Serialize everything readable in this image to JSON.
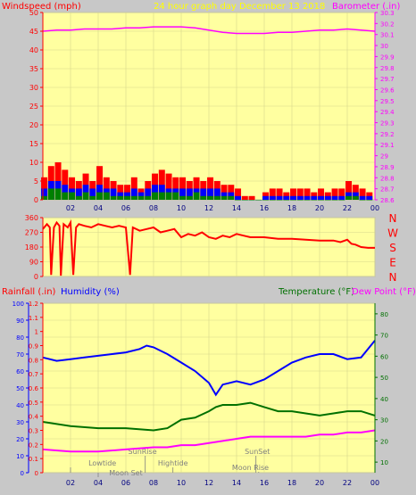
{
  "header": {
    "wind_label": "Windspeed (mph)",
    "title": "24 hour graph day   December 13 2018",
    "baro_label": "Barometer (.in)"
  },
  "colors": {
    "background": "#c8c8c8",
    "plot_bg": "#ffffa0",
    "grid": "#d7d78c",
    "axis_red": "#ff0000",
    "magenta": "#ff00ff",
    "wind_red": "#ff0000",
    "wind_blue": "#0000ff",
    "wind_green": "#008000",
    "humidity": "#0000ff",
    "temperature": "#007000",
    "dew": "#ff00ff",
    "annotation": "#808080"
  },
  "chart_data": [
    {
      "type": "line",
      "name": "wind-baro",
      "x_ticks": [
        "02",
        "04",
        "06",
        "08",
        "10",
        "12",
        "14",
        "16",
        "18",
        "20",
        "22",
        "00"
      ],
      "y_left_ticks": [
        "0",
        "5",
        "10",
        "15",
        "20",
        "25",
        "30",
        "35",
        "40",
        "45",
        "50"
      ],
      "y_left_range": [
        0,
        50
      ],
      "y_right_ticks": [
        "28.6",
        "28.7",
        "28.8",
        "28.9",
        "29",
        "29.1",
        "29.2",
        "29.3",
        "29.4",
        "29.5",
        "29.6",
        "29.7",
        "29.8",
        "29.9",
        "30",
        "30.1",
        "30.2",
        "30.3"
      ],
      "y_right_range": [
        28.6,
        30.3
      ],
      "x_range": [
        0,
        24
      ],
      "series": [
        {
          "name": "Windspeed (mph)",
          "axis": "left",
          "style": "red-bars",
          "x": [
            0.1,
            0.6,
            1.1,
            1.6,
            2.1,
            2.6,
            3.1,
            3.6,
            4.1,
            4.6,
            5.1,
            5.6,
            6.1,
            6.6,
            7.1,
            7.6,
            8.1,
            8.6,
            9.1,
            9.6,
            10.1,
            10.6,
            11.1,
            11.6,
            12.1,
            12.6,
            13.1,
            13.6,
            14.1,
            14.6,
            15.1,
            15.6,
            16.1,
            16.6,
            17.1,
            17.6,
            18.1,
            18.6,
            19.1,
            19.6,
            20.1,
            20.6,
            21.1,
            21.6,
            22.1,
            22.6,
            23.1,
            23.6
          ],
          "gust": [
            6,
            9,
            10,
            8,
            6,
            5,
            7,
            5,
            9,
            6,
            5,
            4,
            4,
            6,
            3,
            5,
            7,
            8,
            7,
            6,
            6,
            5,
            6,
            5,
            6,
            5,
            4,
            4,
            3,
            1,
            1,
            0,
            2,
            3,
            3,
            2,
            3,
            3,
            3,
            2,
            3,
            2,
            3,
            3,
            5,
            4,
            3,
            2
          ],
          "avg": [
            3,
            5,
            5,
            4,
            3,
            3,
            4,
            3,
            4,
            3,
            3,
            2,
            2,
            3,
            2,
            3,
            4,
            4,
            3,
            3,
            3,
            3,
            3,
            3,
            3,
            3,
            2,
            2,
            1,
            0,
            0,
            0,
            1,
            1,
            1,
            1,
            1,
            1,
            1,
            1,
            1,
            1,
            1,
            1,
            2,
            2,
            1,
            1
          ],
          "low": [
            1,
            3,
            3,
            2,
            2,
            1,
            2,
            1,
            2,
            2,
            1,
            1,
            1,
            1,
            1,
            1,
            2,
            2,
            2,
            2,
            1,
            1,
            2,
            1,
            1,
            1,
            1,
            1,
            0,
            0,
            0,
            0,
            0,
            0,
            0,
            0,
            0,
            0,
            0,
            0,
            0,
            0,
            0,
            0,
            1,
            1,
            0,
            0
          ]
        },
        {
          "name": "Barometer (.in)",
          "axis": "right",
          "x": [
            0,
            1,
            2,
            3,
            4,
            5,
            6,
            7,
            8,
            9,
            10,
            11,
            12,
            13,
            14,
            15,
            16,
            17,
            18,
            19,
            20,
            21,
            22,
            23,
            24
          ],
          "y": [
            30.13,
            30.14,
            30.14,
            30.15,
            30.15,
            30.15,
            30.16,
            30.16,
            30.17,
            30.17,
            30.17,
            30.16,
            30.14,
            30.12,
            30.11,
            30.11,
            30.11,
            30.12,
            30.12,
            30.13,
            30.14,
            30.14,
            30.15,
            30.14,
            30.13
          ]
        }
      ]
    },
    {
      "type": "line",
      "name": "wind-direction",
      "y_ticks": [
        "360",
        "270",
        "180",
        "90",
        "0"
      ],
      "y_range": [
        0,
        360
      ],
      "compass": [
        "N",
        "W",
        "S",
        "E",
        "N"
      ],
      "x_range": [
        0,
        24
      ],
      "series": [
        {
          "name": "Wind direction",
          "x": [
            0,
            0.3,
            0.5,
            0.6,
            0.8,
            1.0,
            1.2,
            1.3,
            1.5,
            1.8,
            2.0,
            2.2,
            2.4,
            2.6,
            3.0,
            3.5,
            4.0,
            4.5,
            5.0,
            5.5,
            6.0,
            6.3,
            6.5,
            7.0,
            7.5,
            8.0,
            8.5,
            9.0,
            9.5,
            10.0,
            10.5,
            11.0,
            11.5,
            12.0,
            12.5,
            13.0,
            13.5,
            14.0,
            14.5,
            15.0,
            16.0,
            17.0,
            18.0,
            19.0,
            20.0,
            21.0,
            21.5,
            22.0,
            22.3,
            22.6,
            23.0,
            23.5,
            24.0
          ],
          "y": [
            290,
            320,
            300,
            10,
            300,
            330,
            310,
            5,
            320,
            300,
            330,
            10,
            300,
            320,
            310,
            300,
            320,
            310,
            300,
            310,
            300,
            10,
            300,
            280,
            290,
            300,
            270,
            280,
            290,
            240,
            260,
            250,
            270,
            240,
            230,
            250,
            240,
            260,
            250,
            240,
            240,
            230,
            230,
            225,
            220,
            220,
            210,
            225,
            200,
            195,
            180,
            175,
            175
          ]
        }
      ]
    },
    {
      "type": "line",
      "name": "rain-humidity-temperature",
      "x_ticks": [
        "02",
        "04",
        "06",
        "08",
        "10",
        "12",
        "14",
        "16",
        "18",
        "20",
        "22",
        "00"
      ],
      "y_humidity_ticks": [
        "0",
        "10",
        "20",
        "30",
        "40",
        "50",
        "60",
        "70",
        "80",
        "90",
        "100"
      ],
      "y_rain_ticks": [
        "0",
        "0.1",
        "0.2",
        "0.3",
        "0.4",
        "0.5",
        "0.6",
        "0.7",
        "0.8",
        "0.9",
        "1",
        "1.1",
        "1.2"
      ],
      "y_right_ticks": [
        "10",
        "20",
        "30",
        "40",
        "50",
        "60",
        "70",
        "80"
      ],
      "y_humidity_range": [
        0,
        100
      ],
      "y_rain_range": [
        0,
        1.2
      ],
      "y_right_range": [
        5,
        85
      ],
      "x_range": [
        0,
        24
      ],
      "labels": {
        "rainfall": "Rainfall (.in)",
        "humidity": "Humidity (%)",
        "temperature": "Temperature (°F)",
        "dewpoint": "Dew Point (°F)"
      },
      "annotations": [
        "Lowtide",
        "Moon Set",
        "SunRise",
        "Hightide",
        "SunSet",
        "Moon Rise"
      ],
      "series": [
        {
          "name": "Humidity (%)",
          "axis": "humidity",
          "x": [
            0,
            1,
            2,
            3,
            4,
            5,
            6,
            7,
            7.5,
            8,
            9,
            10,
            11,
            12,
            12.5,
            13,
            14,
            15,
            16,
            17,
            18,
            19,
            20,
            21,
            22,
            23,
            24
          ],
          "y": [
            68,
            66,
            67,
            68,
            69,
            70,
            71,
            73,
            75,
            74,
            70,
            65,
            60,
            53,
            46,
            52,
            54,
            52,
            55,
            60,
            65,
            68,
            70,
            70,
            67,
            68,
            78
          ]
        },
        {
          "name": "Temperature (°F)",
          "axis": "right",
          "x": [
            0,
            2,
            4,
            6,
            8,
            9,
            10,
            11,
            12,
            12.5,
            13,
            14,
            15,
            16,
            17,
            18,
            19,
            20,
            21,
            22,
            23,
            24
          ],
          "y": [
            29,
            27,
            26,
            26,
            25,
            26,
            30,
            31,
            34,
            36,
            37,
            37,
            38,
            36,
            34,
            34,
            33,
            32,
            33,
            34,
            34,
            32
          ]
        },
        {
          "name": "Dew Point (°F)",
          "axis": "right",
          "x": [
            0,
            2,
            4,
            6,
            8,
            9,
            10,
            11,
            12,
            13,
            14,
            15,
            16,
            17,
            18,
            19,
            20,
            21,
            22,
            23,
            24
          ],
          "y": [
            16,
            15,
            15,
            16,
            17,
            17,
            18,
            18,
            19,
            20,
            21,
            22,
            22,
            22,
            22,
            22,
            23,
            23,
            24,
            24,
            25
          ]
        }
      ]
    }
  ]
}
